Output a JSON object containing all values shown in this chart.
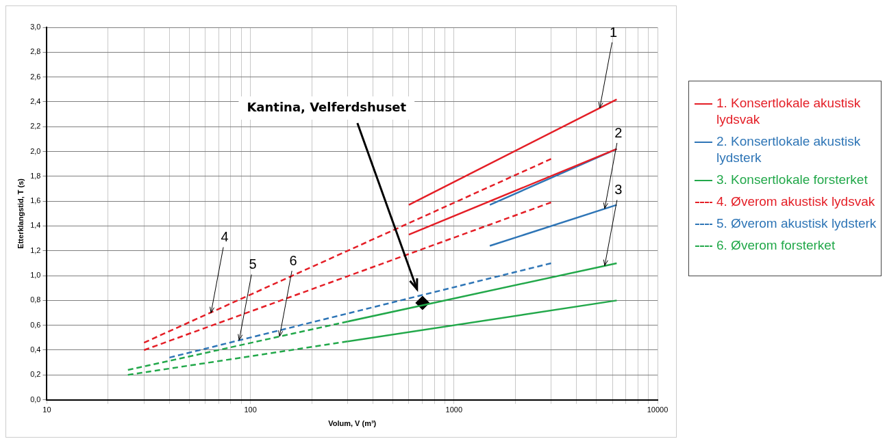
{
  "chart_data": {
    "type": "line",
    "xlabel": "Volum, V (m³)",
    "ylabel": "Etterklangstid, T (s)",
    "log": "x",
    "grid": true,
    "legend": "right",
    "xlim": [
      10,
      10000
    ],
    "xticks": [
      10,
      {
        "value": 20,
        "label": null
      },
      {
        "value": 30,
        "label": null
      },
      {
        "value": 40,
        "label": null
      },
      {
        "value": 50,
        "label": null
      },
      {
        "value": 60,
        "label": null
      },
      {
        "value": 70,
        "label": null
      },
      {
        "value": 80,
        "label": null
      },
      {
        "value": 90,
        "label": null
      },
      100,
      {
        "value": 200,
        "label": null
      },
      {
        "value": 300,
        "label": null
      },
      {
        "value": 400,
        "label": null
      },
      {
        "value": 500,
        "label": null
      },
      {
        "value": 600,
        "label": null
      },
      {
        "value": 700,
        "label": null
      },
      {
        "value": 800,
        "label": null
      },
      {
        "value": 900,
        "label": null
      },
      1000,
      {
        "value": 2000,
        "label": null
      },
      {
        "value": 3000,
        "label": null
      },
      {
        "value": 4000,
        "label": null
      },
      {
        "value": 5000,
        "label": null
      },
      {
        "value": 6000,
        "label": null
      },
      {
        "value": 7000,
        "label": null
      },
      {
        "value": 8000,
        "label": null
      },
      {
        "value": 9000,
        "label": null
      },
      10000
    ],
    "ylim": [
      0,
      3
    ],
    "yticks": [
      {
        "value": 0,
        "label": "0,0"
      },
      {
        "value": 0.2,
        "label": "0,2"
      },
      {
        "value": 0.4,
        "label": "0,4"
      },
      {
        "value": 0.6,
        "label": "0,6"
      },
      {
        "value": 0.8,
        "label": "0,8"
      },
      {
        "value": 1,
        "label": "1,0"
      },
      {
        "value": 1.2,
        "label": "1,2"
      },
      {
        "value": 1.4,
        "label": "1,4"
      },
      {
        "value": 1.6,
        "label": "1,6"
      },
      {
        "value": 1.8,
        "label": "1,8"
      },
      {
        "value": 2,
        "label": "2,0"
      },
      {
        "value": 2.2,
        "label": "2,2"
      },
      {
        "value": 2.4,
        "label": "2,4"
      },
      {
        "value": 2.6,
        "label": "2,6"
      },
      {
        "value": 2.8,
        "label": "2,8"
      },
      {
        "value": 3,
        "label": "3,0"
      }
    ],
    "series": [
      {
        "name": "1. Konsertlokale akustisk lydsvak",
        "type": "line",
        "line_style": "solid",
        "color": "#e41e26",
        "x": [
          600,
          6300
        ],
        "values": [
          1.57,
          2.42
        ]
      },
      {
        "type": "line",
        "line_style": "solid",
        "color": "#e41e26",
        "x": [
          600,
          6300
        ],
        "values": [
          1.33,
          2.02
        ]
      },
      {
        "name": "2. Konsertlokale akustisk lydsterk",
        "type": "line",
        "line_style": "solid",
        "color": "#2e75b6",
        "x": [
          1500,
          6300
        ],
        "values": [
          1.57,
          2.02
        ]
      },
      {
        "type": "line",
        "line_style": "solid",
        "color": "#2e75b6",
        "x": [
          1500,
          6300
        ],
        "values": [
          1.24,
          1.57
        ]
      },
      {
        "name": "3. Konsertlokale forsterket",
        "type": "line",
        "line_style": "solid",
        "color": "#22a84a",
        "x": [
          300,
          6300
        ],
        "values": [
          0.63,
          1.1
        ]
      },
      {
        "type": "line",
        "line_style": "solid",
        "color": "#22a84a",
        "x": [
          300,
          6300
        ],
        "values": [
          0.47,
          0.8
        ]
      },
      {
        "name": "4. Øverom akustisk lydsvak",
        "type": "line",
        "line_style": "dashed",
        "color": "#e41e26",
        "x": [
          30,
          3000
        ],
        "values": [
          0.46,
          1.94
        ]
      },
      {
        "type": "line",
        "line_style": "dashed",
        "color": "#e41e26",
        "x": [
          30,
          3000
        ],
        "values": [
          0.4,
          1.59
        ]
      },
      {
        "name": "5. Øverom akustisk lydsterk",
        "type": "line",
        "line_style": "dashed",
        "color": "#2e75b6",
        "x": [
          40,
          3000
        ],
        "values": [
          0.34,
          1.1
        ]
      },
      {
        "name": "6. Øverom forsterket",
        "type": "line",
        "line_style": "dashed",
        "color": "#22a84a",
        "x": [
          25,
          300
        ],
        "values": [
          0.24,
          0.63
        ]
      },
      {
        "type": "line",
        "line_style": "dashed",
        "color": "#22a84a",
        "x": [
          25,
          300
        ],
        "values": [
          0.2,
          0.47
        ]
      },
      {
        "name": "Kantina, Velferdshuset",
        "type": "scatter",
        "marker": "diamond",
        "color": "#000000",
        "x": [
          700
        ],
        "values": [
          0.78
        ]
      }
    ],
    "annotations": [
      {
        "text": "1",
        "x": 5200,
        "y": 2.35
      },
      {
        "text": "2",
        "x": 5500,
        "y": 1.54
      },
      {
        "text": "3",
        "x": 5500,
        "y": 1.08
      },
      {
        "text": "4",
        "x": 64,
        "y": 0.7
      },
      {
        "text": "5",
        "x": 88,
        "y": 0.48
      },
      {
        "text": "6",
        "x": 139,
        "y": 0.51
      }
    ]
  }
}
